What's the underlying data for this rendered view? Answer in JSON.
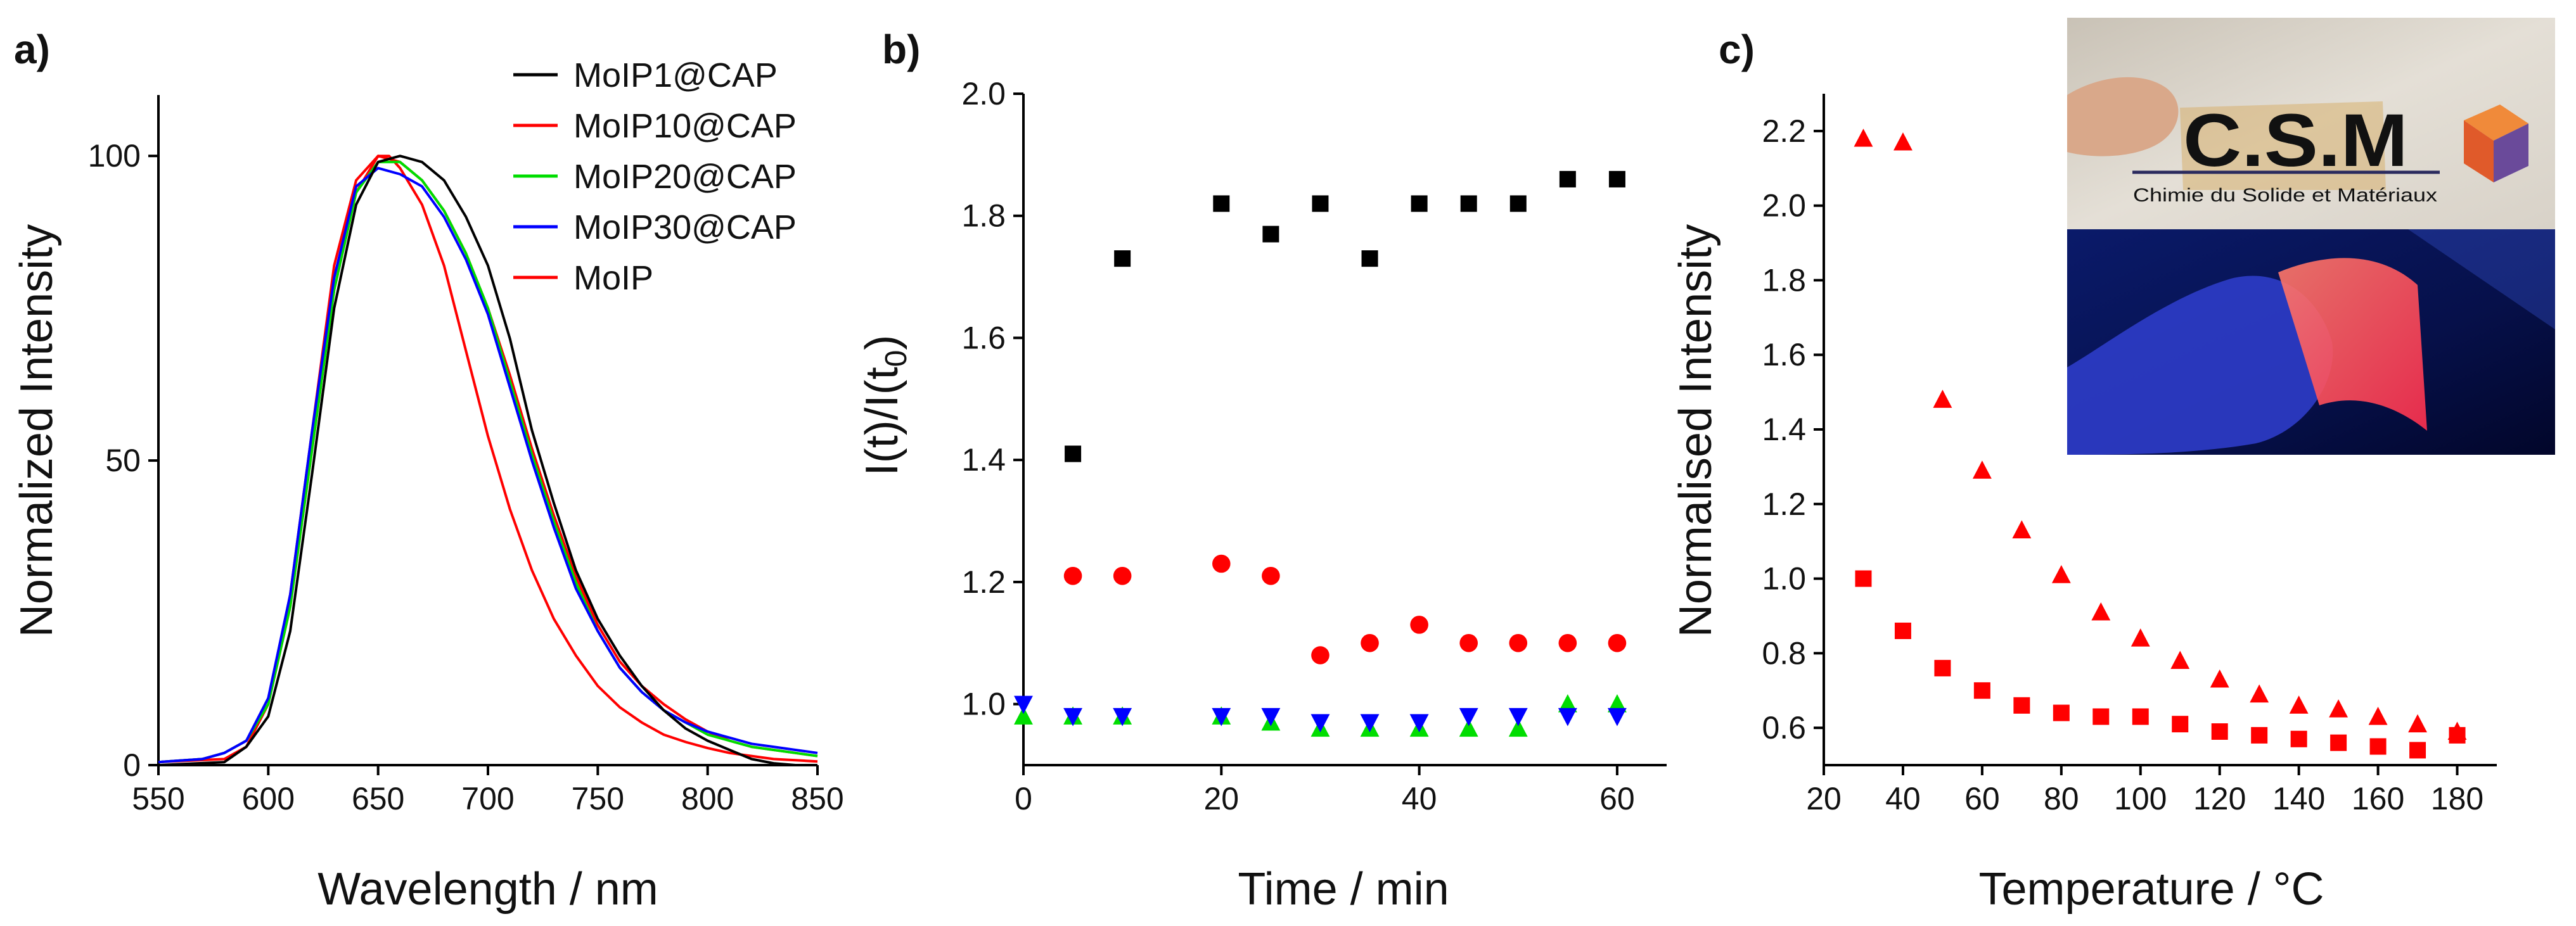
{
  "chart_data": [
    {
      "panel": "a)",
      "type": "line",
      "title": "",
      "xlabel": "Wavelength / nm",
      "ylabel": "Normalized Intensity",
      "xlim": [
        550,
        850
      ],
      "ylim": [
        0,
        110
      ],
      "xticks": [
        550,
        600,
        650,
        700,
        750,
        800,
        850
      ],
      "yticks": [
        0,
        50,
        100
      ],
      "legend_position": "top-right",
      "series": [
        {
          "name": "MoIP1@CAP",
          "color": "#000000",
          "x": [
            550,
            580,
            590,
            600,
            610,
            620,
            630,
            640,
            650,
            660,
            670,
            680,
            690,
            700,
            710,
            720,
            730,
            740,
            750,
            760,
            770,
            780,
            790,
            800,
            810,
            820,
            830,
            840,
            850
          ],
          "y": [
            0,
            0.5,
            3,
            8,
            22,
            48,
            75,
            92,
            99,
            100,
            99,
            96,
            90,
            82,
            70,
            55,
            43,
            32,
            24,
            18,
            13,
            9,
            6,
            4,
            2.5,
            1,
            0.3,
            0,
            0
          ]
        },
        {
          "name": "MoIP10@CAP",
          "color": "#ff0000",
          "x": [
            550,
            570,
            580,
            590,
            600,
            610,
            620,
            630,
            640,
            650,
            660,
            670,
            680,
            690,
            700,
            710,
            720,
            730,
            740,
            750,
            760,
            770,
            780,
            790,
            800,
            810,
            820,
            830,
            840,
            850
          ],
          "y": [
            0.5,
            1,
            2,
            4,
            10,
            26,
            52,
            78,
            94,
            100,
            99,
            96,
            91,
            84,
            75,
            64,
            52,
            41,
            31,
            23,
            17,
            13,
            10,
            7.5,
            5.5,
            4,
            3,
            2.5,
            2,
            1.5
          ]
        },
        {
          "name": "MoIP20@CAP",
          "color": "#00dd00",
          "x": [
            550,
            570,
            580,
            590,
            600,
            610,
            620,
            630,
            640,
            650,
            660,
            670,
            680,
            690,
            700,
            710,
            720,
            730,
            740,
            750,
            760,
            770,
            780,
            790,
            800,
            810,
            820,
            830,
            840,
            850
          ],
          "y": [
            0.5,
            1,
            2,
            4,
            10,
            26,
            52,
            78,
            94,
            99,
            99,
            96,
            91,
            84,
            75,
            63,
            51,
            40,
            30,
            22,
            16,
            12,
            9,
            7,
            5,
            4,
            3,
            2.5,
            2,
            1.5
          ]
        },
        {
          "name": "MoIP30@CAP",
          "color": "#0000ff",
          "x": [
            550,
            570,
            580,
            590,
            600,
            610,
            620,
            630,
            640,
            650,
            660,
            670,
            680,
            690,
            700,
            710,
            720,
            730,
            740,
            750,
            760,
            770,
            780,
            790,
            800,
            810,
            820,
            830,
            840,
            850
          ],
          "y": [
            0.5,
            1,
            2,
            4,
            11,
            28,
            55,
            80,
            95,
            98,
            97,
            95,
            90,
            83,
            74,
            62,
            50,
            39,
            29,
            22,
            16,
            12,
            9,
            7,
            5.5,
            4.5,
            3.5,
            3,
            2.5,
            2
          ]
        },
        {
          "name": "MoIP",
          "color": "#ff0000",
          "x": [
            550,
            580,
            590,
            600,
            610,
            620,
            630,
            640,
            650,
            655,
            660,
            670,
            680,
            690,
            700,
            710,
            720,
            730,
            740,
            750,
            760,
            770,
            780,
            790,
            800,
            810,
            820,
            830,
            840,
            850
          ],
          "y": [
            0.5,
            1,
            3,
            10,
            28,
            55,
            82,
            96,
            100,
            100,
            98,
            92,
            82,
            68,
            54,
            42,
            32,
            24,
            18,
            13,
            9.5,
            7,
            5,
            3.8,
            2.8,
            2,
            1.5,
            1,
            0.8,
            0.6
          ]
        }
      ]
    },
    {
      "panel": "b)",
      "type": "scatter",
      "title": "",
      "xlabel": "Time / min",
      "ylabel_base": "I(t)/I(t",
      "ylabel_sub": "0",
      "ylabel_end": ")",
      "xlim": [
        0,
        65
      ],
      "ylim": [
        0.9,
        2.0
      ],
      "xticks": [
        0,
        20,
        40,
        60
      ],
      "yticks": [
        1.0,
        1.2,
        1.4,
        1.6,
        1.8,
        2.0
      ],
      "series": [
        {
          "name": "MoIP1@CAP",
          "marker": "square",
          "color": "#000000",
          "x": [
            5,
            10,
            20,
            25,
            30,
            35,
            40,
            45,
            50,
            55,
            60
          ],
          "y": [
            1.41,
            1.73,
            1.82,
            1.77,
            1.82,
            1.73,
            1.82,
            1.82,
            1.82,
            1.86,
            1.86
          ]
        },
        {
          "name": "MoIP10@CAP",
          "marker": "circle",
          "color": "#ff0000",
          "x": [
            5,
            10,
            20,
            25,
            30,
            35,
            40,
            45,
            50,
            55,
            60
          ],
          "y": [
            1.21,
            1.21,
            1.23,
            1.21,
            1.08,
            1.1,
            1.13,
            1.1,
            1.1,
            1.1,
            1.1
          ]
        },
        {
          "name": "MoIP20@CAP",
          "marker": "triangle-up",
          "color": "#00dd00",
          "x": [
            0,
            5,
            10,
            20,
            25,
            30,
            35,
            40,
            45,
            50,
            55,
            60
          ],
          "y": [
            0.98,
            0.98,
            0.98,
            0.98,
            0.97,
            0.96,
            0.96,
            0.96,
            0.96,
            0.96,
            1.0,
            1.0
          ]
        },
        {
          "name": "MoIP30@CAP",
          "marker": "triangle-down",
          "color": "#0000ff",
          "x": [
            0,
            5,
            10,
            20,
            25,
            30,
            35,
            40,
            45,
            50,
            55,
            60
          ],
          "y": [
            1.0,
            0.98,
            0.98,
            0.98,
            0.98,
            0.97,
            0.97,
            0.97,
            0.98,
            0.98,
            0.98,
            0.98
          ]
        }
      ]
    },
    {
      "panel": "c)",
      "type": "scatter",
      "title": "",
      "xlabel": "Temperature / °C",
      "ylabel": "Normalised Intensity",
      "xlim": [
        20,
        190
      ],
      "ylim": [
        0.5,
        2.3
      ],
      "xticks": [
        20,
        40,
        60,
        80,
        100,
        120,
        140,
        160,
        180
      ],
      "yticks": [
        0.6,
        0.8,
        1.0,
        1.2,
        1.4,
        1.6,
        1.8,
        2.0,
        2.2
      ],
      "series": [
        {
          "name": "squares",
          "marker": "square",
          "color": "#ff0000",
          "x": [
            30,
            40,
            50,
            60,
            70,
            80,
            90,
            100,
            110,
            120,
            130,
            140,
            150,
            160,
            170,
            180
          ],
          "y": [
            1.0,
            0.86,
            0.76,
            0.7,
            0.66,
            0.64,
            0.63,
            0.63,
            0.61,
            0.59,
            0.58,
            0.57,
            0.56,
            0.55,
            0.54,
            0.58
          ]
        },
        {
          "name": "triangles",
          "marker": "triangle-up",
          "color": "#ff0000",
          "x": [
            30,
            40,
            50,
            60,
            70,
            80,
            90,
            100,
            110,
            120,
            130,
            140,
            150,
            160,
            170,
            180
          ],
          "y": [
            2.18,
            2.17,
            1.48,
            1.29,
            1.13,
            1.01,
            0.91,
            0.84,
            0.78,
            0.73,
            0.69,
            0.66,
            0.65,
            0.63,
            0.61,
            0.59
          ]
        }
      ],
      "inset": {
        "logo_text": "C.S.M",
        "logo_caption": "Chimie du Solide et Matériaux"
      }
    }
  ]
}
